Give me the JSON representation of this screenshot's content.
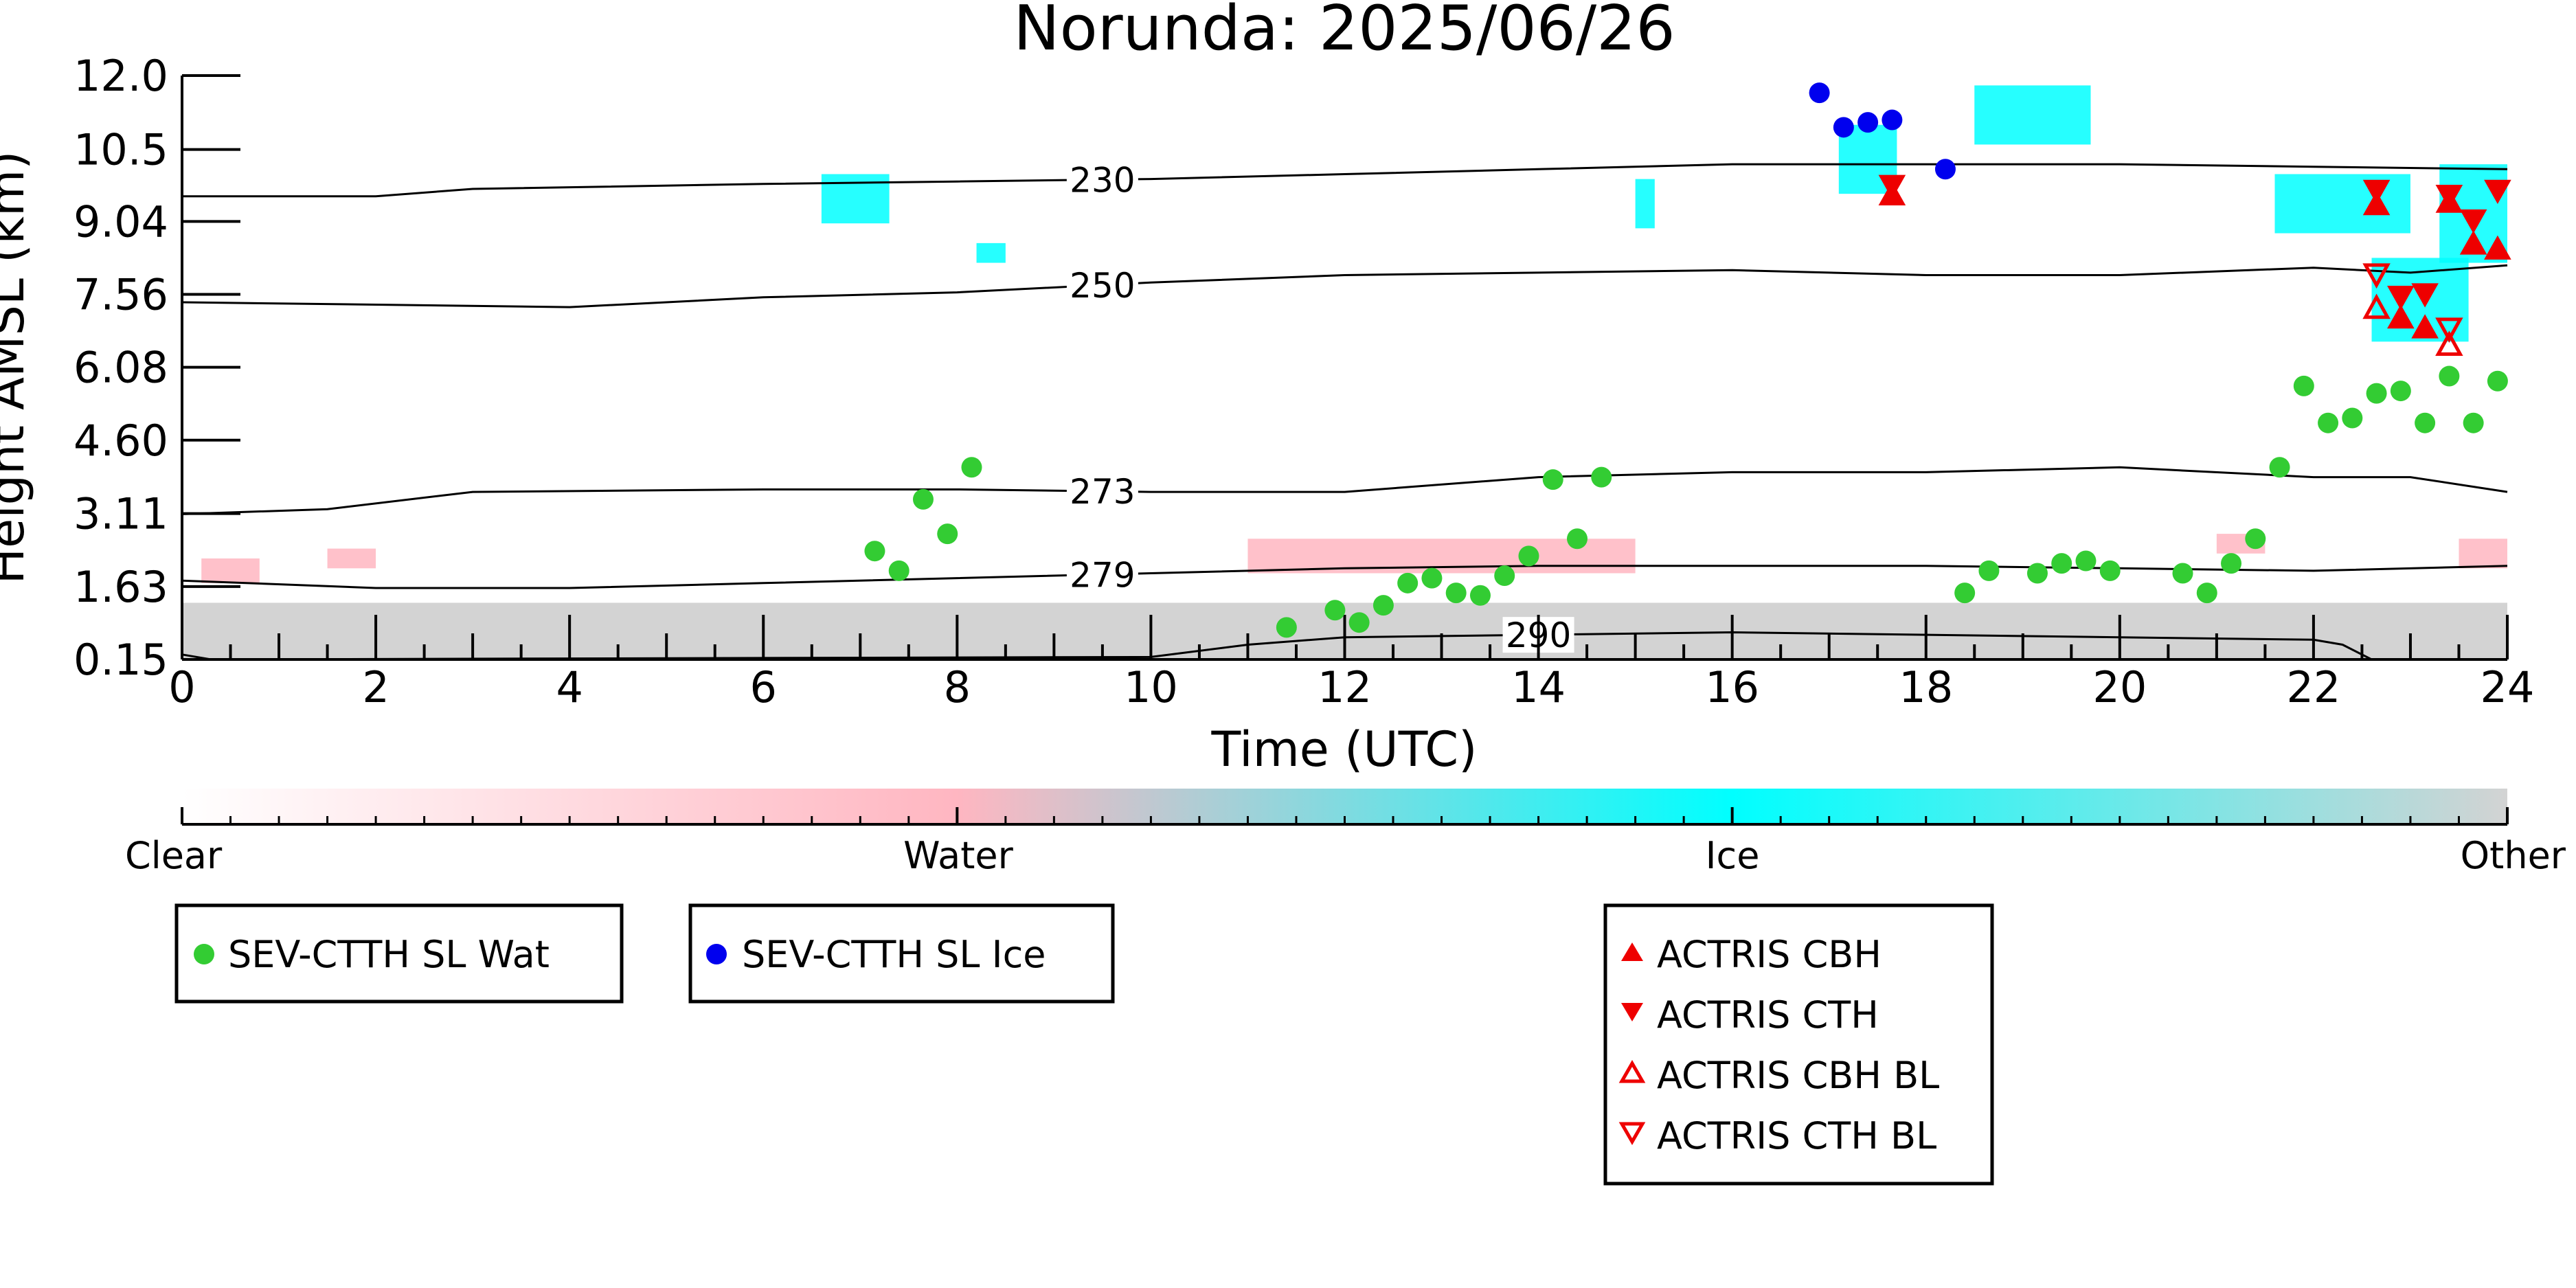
{
  "chart_data": {
    "type": "scatter",
    "title": "Norunda: 2025/06/26",
    "xlabel": "Time (UTC)",
    "ylabel": "Height AMSL (km)",
    "xlim": [
      0,
      24
    ],
    "ylim": [
      0.15,
      12.0
    ],
    "xticks": [
      0,
      2,
      4,
      6,
      8,
      10,
      12,
      14,
      16,
      18,
      20,
      22,
      24
    ],
    "xtick_labels": [
      "0",
      "2",
      "4",
      "6",
      "8",
      "10",
      "12",
      "14",
      "16",
      "18",
      "20",
      "22",
      "24"
    ],
    "yticks": [
      0.15,
      1.63,
      3.11,
      4.6,
      6.08,
      7.56,
      9.04,
      10.5,
      12.0
    ],
    "ytick_labels": [
      "0.15",
      "1.63",
      "3.11",
      "4.60",
      "6.08",
      "7.56",
      "9.04",
      "10.5",
      "12.0"
    ],
    "colorbar": {
      "labels": [
        "Clear",
        "Water",
        "Ice",
        "Other"
      ],
      "colors": [
        "#ffffff",
        "#ffb6c1",
        "#00ffff",
        "#d3d3d3"
      ]
    },
    "contours": [
      {
        "label": "230",
        "x": [
          0,
          2,
          3,
          6,
          8,
          10,
          12,
          14,
          16,
          18,
          20,
          22,
          24
        ],
        "y": [
          9.55,
          9.55,
          9.7,
          9.8,
          9.85,
          9.9,
          10.0,
          10.1,
          10.2,
          10.2,
          10.2,
          10.15,
          10.1
        ],
        "label_x": 9.5
      },
      {
        "label": "250",
        "x": [
          0,
          2,
          4,
          6,
          8,
          10,
          12,
          14,
          16,
          18,
          20,
          22,
          23,
          24
        ],
        "y": [
          7.4,
          7.35,
          7.3,
          7.5,
          7.6,
          7.8,
          7.95,
          8.0,
          8.05,
          7.95,
          7.95,
          8.1,
          8.0,
          8.15
        ],
        "label_x": 9.5
      },
      {
        "label": "273",
        "x": [
          0,
          1.5,
          3,
          6,
          8,
          10,
          12,
          14,
          16,
          18,
          20,
          22,
          23,
          24
        ],
        "y": [
          3.1,
          3.2,
          3.55,
          3.6,
          3.6,
          3.55,
          3.55,
          3.85,
          3.95,
          3.95,
          4.05,
          3.85,
          3.85,
          3.55
        ],
        "label_x": 9.5
      },
      {
        "label": "279",
        "x": [
          0,
          2,
          4,
          6,
          8,
          10,
          12,
          14,
          16,
          18,
          20,
          22,
          24
        ],
        "y": [
          1.75,
          1.6,
          1.6,
          1.7,
          1.8,
          1.9,
          2.0,
          2.05,
          2.05,
          2.05,
          2.0,
          1.95,
          2.05
        ],
        "label_x": 9.5
      },
      {
        "label": "290",
        "x": [
          0,
          0.3,
          10,
          11,
          12,
          14,
          16,
          18,
          20,
          22,
          22.3,
          22.6
        ],
        "y": [
          0.25,
          0.15,
          0.2,
          0.45,
          0.6,
          0.65,
          0.7,
          0.65,
          0.6,
          0.55,
          0.45,
          0.15
        ],
        "label_x": 14
      }
    ],
    "series": [
      {
        "name": "SEV-CTTH SL Wat",
        "marker": "circle",
        "color": "#33cc33",
        "x": [
          7.15,
          7.4,
          7.65,
          7.9,
          8.15,
          11.4,
          11.9,
          12.15,
          12.4,
          12.65,
          12.9,
          13.15,
          13.4,
          13.65,
          13.9,
          14.15,
          14.4,
          14.65,
          18.4,
          18.65,
          19.15,
          19.4,
          19.65,
          19.9,
          20.65,
          20.9,
          21.15,
          21.4,
          21.65,
          21.9,
          22.15,
          22.4,
          22.65,
          22.9,
          23.15,
          23.4,
          23.65,
          23.9
        ],
        "y": [
          2.35,
          1.95,
          3.4,
          2.7,
          4.05,
          0.8,
          1.15,
          0.9,
          1.25,
          1.7,
          1.8,
          1.5,
          1.45,
          1.85,
          2.25,
          3.8,
          2.6,
          3.85,
          1.5,
          1.95,
          1.9,
          2.1,
          2.15,
          1.95,
          1.9,
          1.5,
          2.1,
          2.6,
          4.05,
          5.7,
          4.95,
          5.05,
          5.55,
          5.6,
          4.95,
          5.9,
          4.95,
          5.8
        ]
      },
      {
        "name": "SEV-CTTH SL Ice",
        "marker": "circle",
        "color": "#0000ee",
        "x": [
          16.9,
          17.15,
          17.4,
          17.65,
          18.2
        ],
        "y": [
          11.65,
          10.95,
          11.05,
          11.1,
          10.1
        ]
      },
      {
        "name": "ACTRIS CBH",
        "marker": "triangle-up",
        "color": "#ee0000",
        "x": [
          17.65,
          22.65,
          22.9,
          23.15,
          23.4,
          23.65,
          23.9
        ],
        "y": [
          9.55,
          9.35,
          7.05,
          6.85,
          9.4,
          8.55,
          8.45
        ]
      },
      {
        "name": "ACTRIS CTH",
        "marker": "triangle-down",
        "color": "#ee0000",
        "x": [
          17.65,
          22.65,
          22.9,
          23.15,
          23.4,
          23.65,
          23.9
        ],
        "y": [
          9.8,
          9.7,
          7.55,
          7.6,
          9.6,
          9.1,
          9.7
        ]
      },
      {
        "name": "ACTRIS CBH BL",
        "marker": "triangle-up-open",
        "color": "#ee0000",
        "x": [
          22.65,
          23.4
        ],
        "y": [
          7.25,
          6.5
        ]
      },
      {
        "name": "ACTRIS CTH BL",
        "marker": "triangle-down-open",
        "color": "#ee0000",
        "x": [
          22.65,
          23.4
        ],
        "y": [
          8.0,
          6.9
        ]
      }
    ],
    "legends": [
      {
        "entries": [
          "SEV-CTTH SL Wat"
        ]
      },
      {
        "entries": [
          "SEV-CTTH SL Ice"
        ]
      },
      {
        "entries": [
          "ACTRIS CBH",
          "ACTRIS CTH",
          "ACTRIS CBH BL",
          "ACTRIS CTH BL"
        ]
      }
    ],
    "cloud_regions": [
      {
        "class": "Ice",
        "color": "#00ffff",
        "x": [
          6.6,
          7.3
        ],
        "y": [
          9.0,
          10.0
        ]
      },
      {
        "class": "Ice",
        "color": "#00ffff",
        "x": [
          8.2,
          8.5
        ],
        "y": [
          8.2,
          8.6
        ]
      },
      {
        "class": "Ice",
        "color": "#00ffff",
        "x": [
          15.0,
          15.2
        ],
        "y": [
          8.9,
          9.9
        ]
      },
      {
        "class": "Ice",
        "color": "#00ffff",
        "x": [
          17.1,
          17.7
        ],
        "y": [
          9.6,
          11.0
        ]
      },
      {
        "class": "Ice",
        "color": "#00ffff",
        "x": [
          18.5,
          19.7
        ],
        "y": [
          10.6,
          11.8
        ]
      },
      {
        "class": "Ice",
        "color": "#00ffff",
        "x": [
          21.6,
          23.0
        ],
        "y": [
          8.8,
          10.0
        ]
      },
      {
        "class": "Ice",
        "color": "#00ffff",
        "x": [
          22.6,
          23.6
        ],
        "y": [
          6.6,
          8.3
        ]
      },
      {
        "class": "Ice",
        "color": "#00ffff",
        "x": [
          23.3,
          24.0
        ],
        "y": [
          8.2,
          10.2
        ]
      },
      {
        "class": "Water",
        "color": "#ffb6c1",
        "x": [
          0.2,
          0.8
        ],
        "y": [
          1.7,
          2.2
        ]
      },
      {
        "class": "Water",
        "color": "#ffb6c1",
        "x": [
          1.5,
          2.0
        ],
        "y": [
          2.0,
          2.4
        ]
      },
      {
        "class": "Water",
        "color": "#ffb6c1",
        "x": [
          11.0,
          15.0
        ],
        "y": [
          1.9,
          2.6
        ]
      },
      {
        "class": "Water",
        "color": "#ffb6c1",
        "x": [
          21.0,
          21.5
        ],
        "y": [
          2.3,
          2.7
        ]
      },
      {
        "class": "Water",
        "color": "#ffb6c1",
        "x": [
          23.5,
          24.0
        ],
        "y": [
          2.0,
          2.6
        ]
      },
      {
        "class": "Other",
        "color": "#d3d3d3",
        "x": [
          0,
          24
        ],
        "y": [
          0.15,
          1.3
        ]
      }
    ]
  }
}
